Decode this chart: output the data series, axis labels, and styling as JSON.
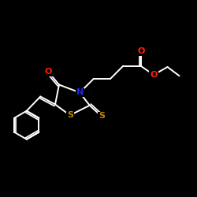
{
  "bg": "#000000",
  "bond_color": "#ffffff",
  "lw": 1.4,
  "fs": 8.0,
  "figsize": [
    2.5,
    2.5
  ],
  "dpi": 100,
  "colors": {
    "O": "#ff2200",
    "N": "#2222ee",
    "S": "#bb8800",
    "C": "#ffffff"
  }
}
